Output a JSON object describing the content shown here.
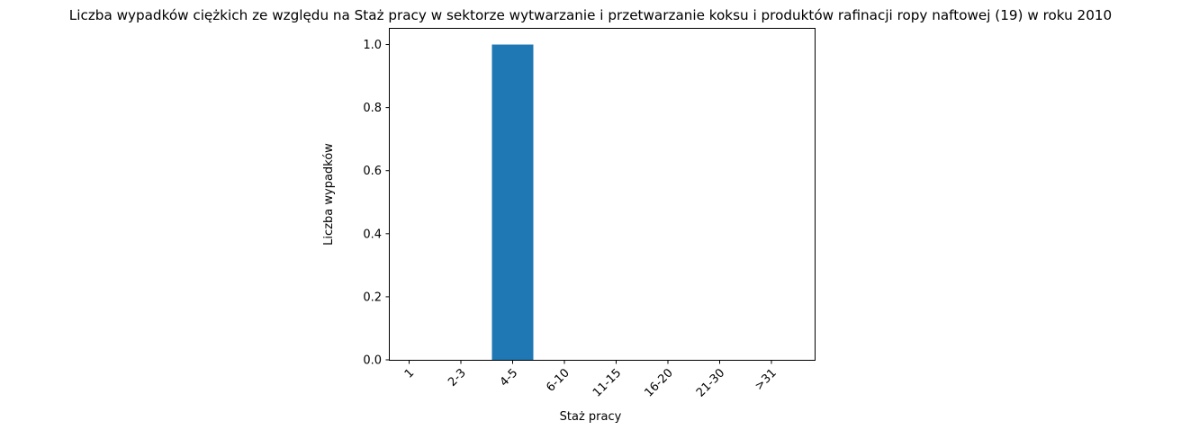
{
  "chart_data": {
    "type": "bar",
    "title": "Liczba wypadków ciężkich ze względu na Staż pracy w sektorze wytwarzanie i przetwarzanie koksu i produktów rafinacji ropy naftowej  (19)   w roku 2010",
    "xlabel": "Staż pracy",
    "ylabel": "Liczba wypadków",
    "categories": [
      "1",
      "2-3",
      "4-5",
      "6-10",
      "11-15",
      "16-20",
      "21-30",
      ">31"
    ],
    "values": [
      0,
      0,
      1,
      0,
      0,
      0,
      0,
      0
    ],
    "ylim": [
      0,
      1.05
    ],
    "yticks": [
      "0.0",
      "0.2",
      "0.4",
      "0.6",
      "0.8",
      "1.0"
    ],
    "bar_color": "#1f77b4",
    "grid": false
  }
}
